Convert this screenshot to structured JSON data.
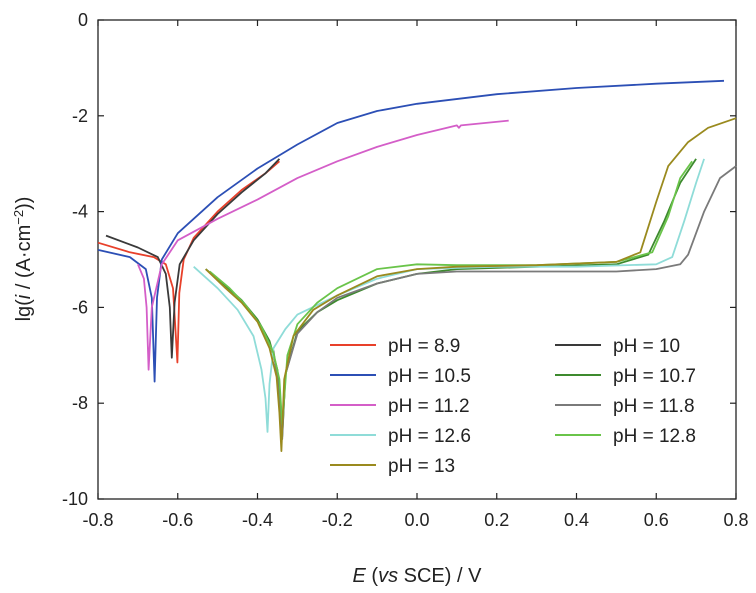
{
  "chart_data": {
    "type": "line",
    "xlabel": {
      "pre": "",
      "italic": "E",
      "mid": " (",
      "italic2": "vs",
      "post": " SCE) / V"
    },
    "ylabel": {
      "pre": "lg(",
      "italic": "i",
      "mid": " / (A·cm",
      "sup": "−2",
      "post": "))"
    },
    "xlim": [
      -0.8,
      0.8
    ],
    "ylim": [
      -10,
      0
    ],
    "xticks": [
      "-0.8",
      "-0.6",
      "-0.4",
      "-0.2",
      "0.0",
      "0.2",
      "0.4",
      "0.6",
      "0.8"
    ],
    "yticks": [
      "0",
      "-2",
      "-4",
      "-6",
      "-8",
      "-10"
    ],
    "legend_position": "bottom-center",
    "series": [
      {
        "name": "pH = 8.9",
        "color": "#e8402a",
        "x": [
          -0.8,
          -0.72,
          -0.66,
          -0.63,
          -0.612,
          -0.601,
          -0.596,
          -0.585,
          -0.56,
          -0.5,
          -0.44,
          -0.38,
          -0.345
        ],
        "y": [
          -4.65,
          -4.85,
          -4.95,
          -5.1,
          -5.6,
          -7.15,
          -5.7,
          -5.0,
          -4.55,
          -4.0,
          -3.55,
          -3.2,
          -2.95
        ]
      },
      {
        "name": "pH = 10",
        "color": "#3a3a3a",
        "x": [
          -0.78,
          -0.7,
          -0.65,
          -0.63,
          -0.62,
          -0.615,
          -0.608,
          -0.595,
          -0.56,
          -0.5,
          -0.44,
          -0.38,
          -0.345
        ],
        "y": [
          -4.5,
          -4.75,
          -4.95,
          -5.3,
          -6.0,
          -7.05,
          -5.9,
          -5.1,
          -4.6,
          -4.05,
          -3.6,
          -3.2,
          -2.9
        ]
      },
      {
        "name": "pH = 10.5",
        "color": "#2c4fb5",
        "x": [
          -0.8,
          -0.72,
          -0.68,
          -0.665,
          -0.658,
          -0.652,
          -0.64,
          -0.6,
          -0.5,
          -0.4,
          -0.3,
          -0.2,
          -0.1,
          0.0,
          0.2,
          0.4,
          0.6,
          0.77
        ],
        "y": [
          -4.8,
          -4.95,
          -5.2,
          -5.8,
          -7.55,
          -5.8,
          -5.0,
          -4.45,
          -3.7,
          -3.1,
          -2.6,
          -2.15,
          -1.9,
          -1.75,
          -1.55,
          -1.42,
          -1.33,
          -1.27
        ]
      },
      {
        "name": "pH = 10.7",
        "color": "#3d8a2e",
        "x": [
          -0.53,
          -0.48,
          -0.44,
          -0.4,
          -0.37,
          -0.35,
          -0.342,
          -0.338,
          -0.33,
          -0.3,
          -0.25,
          -0.2,
          -0.1,
          0.0,
          0.1,
          0.3,
          0.5,
          0.58,
          0.62,
          0.66,
          0.7
        ],
        "y": [
          -5.2,
          -5.55,
          -5.85,
          -6.25,
          -6.7,
          -7.3,
          -8.3,
          -8.7,
          -7.4,
          -6.5,
          -6.1,
          -5.85,
          -5.5,
          -5.3,
          -5.2,
          -5.15,
          -5.1,
          -4.9,
          -4.2,
          -3.4,
          -2.9
        ]
      },
      {
        "name": "pH = 11.2",
        "color": "#d45ec8",
        "x": [
          -0.7,
          -0.685,
          -0.678,
          -0.673,
          -0.665,
          -0.64,
          -0.6,
          -0.5,
          -0.4,
          -0.3,
          -0.2,
          -0.1,
          0.0,
          0.1,
          0.105,
          0.11,
          0.23
        ],
        "y": [
          -5.1,
          -5.4,
          -6.0,
          -7.3,
          -6.0,
          -5.1,
          -4.6,
          -4.15,
          -3.75,
          -3.3,
          -2.95,
          -2.65,
          -2.4,
          -2.2,
          -2.25,
          -2.2,
          -2.1
        ]
      },
      {
        "name": "pH = 11.8",
        "color": "#7a7a7a",
        "x": [
          -0.36,
          -0.35,
          -0.343,
          -0.338,
          -0.33,
          -0.3,
          -0.25,
          -0.2,
          -0.1,
          0.0,
          0.1,
          0.3,
          0.5,
          0.6,
          0.66,
          0.68,
          0.72,
          0.76,
          0.8
        ],
        "y": [
          -6.9,
          -7.5,
          -8.2,
          -8.75,
          -7.4,
          -6.55,
          -6.1,
          -5.8,
          -5.5,
          -5.3,
          -5.25,
          -5.25,
          -5.25,
          -5.2,
          -5.1,
          -4.9,
          -4.0,
          -3.3,
          -3.05
        ]
      },
      {
        "name": "pH = 12.6",
        "color": "#8fdcd8",
        "x": [
          -0.56,
          -0.5,
          -0.45,
          -0.41,
          -0.39,
          -0.38,
          -0.375,
          -0.37,
          -0.36,
          -0.33,
          -0.3,
          -0.2,
          -0.1,
          0.0,
          0.2,
          0.4,
          0.6,
          0.64,
          0.67,
          0.7,
          0.72
        ],
        "y": [
          -5.15,
          -5.6,
          -6.05,
          -6.6,
          -7.3,
          -7.9,
          -8.6,
          -7.6,
          -6.85,
          -6.45,
          -6.15,
          -5.75,
          -5.4,
          -5.2,
          -5.15,
          -5.15,
          -5.1,
          -4.95,
          -4.2,
          -3.4,
          -2.9
        ]
      },
      {
        "name": "pH = 12.8",
        "color": "#6ac44a",
        "x": [
          -0.52,
          -0.47,
          -0.43,
          -0.39,
          -0.36,
          -0.345,
          -0.338,
          -0.333,
          -0.325,
          -0.3,
          -0.25,
          -0.2,
          -0.1,
          0.0,
          0.1,
          0.3,
          0.5,
          0.59,
          0.63,
          0.66,
          0.69
        ],
        "y": [
          -5.25,
          -5.6,
          -5.95,
          -6.4,
          -6.95,
          -7.5,
          -8.45,
          -7.9,
          -7.0,
          -6.35,
          -5.9,
          -5.6,
          -5.2,
          -5.1,
          -5.12,
          -5.12,
          -5.05,
          -4.85,
          -4.1,
          -3.3,
          -2.95
        ]
      },
      {
        "name": "pH = 13",
        "color": "#9a8a1e",
        "x": [
          -0.53,
          -0.48,
          -0.44,
          -0.4,
          -0.37,
          -0.352,
          -0.345,
          -0.34,
          -0.333,
          -0.31,
          -0.26,
          -0.2,
          -0.1,
          0.0,
          0.1,
          0.3,
          0.5,
          0.56,
          0.6,
          0.63,
          0.68,
          0.73,
          0.8
        ],
        "y": [
          -5.2,
          -5.6,
          -5.9,
          -6.3,
          -6.85,
          -7.45,
          -8.2,
          -9.0,
          -7.5,
          -6.6,
          -6.05,
          -5.75,
          -5.35,
          -5.2,
          -5.15,
          -5.12,
          -5.05,
          -4.85,
          -3.8,
          -3.05,
          -2.55,
          -2.25,
          -2.05
        ]
      }
    ]
  }
}
